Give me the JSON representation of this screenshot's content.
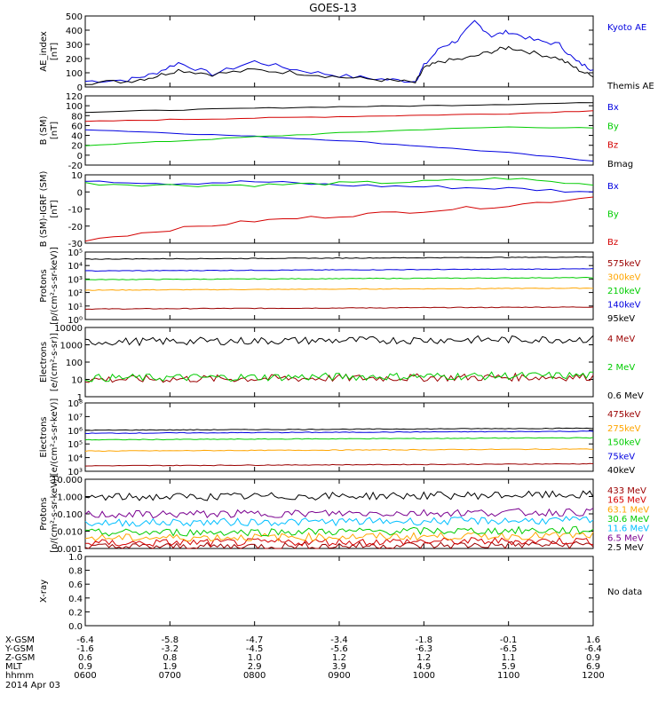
{
  "title": "GOES-13",
  "colors": {
    "black": "#000000",
    "red": "#d40000",
    "green": "#00cc00",
    "blue": "#0000e0",
    "orange": "#ffa500",
    "darkred": "#9b0000",
    "cyan": "#00bfff",
    "purple": "#7a0090",
    "yellowgreen": "#b8d000"
  },
  "bottom_axis": {
    "rows": [
      {
        "label": "X-GSM",
        "values": [
          "-6.4",
          "-5.8",
          "-4.7",
          "-3.4",
          "-1.8",
          "-0.1",
          "1.6"
        ]
      },
      {
        "label": "Y-GSM",
        "values": [
          "-1.6",
          "-3.2",
          "-4.5",
          "-5.6",
          "-6.3",
          "-6.5",
          "-6.4"
        ]
      },
      {
        "label": "Z-GSM",
        "values": [
          "0.6",
          "0.8",
          "1.0",
          "1.2",
          "1.2",
          "1.1",
          "0.9"
        ]
      },
      {
        "label": "MLT",
        "values": [
          "0.9",
          "1.9",
          "2.9",
          "3.9",
          "4.9",
          "5.9",
          "6.9"
        ]
      },
      {
        "label": "hhmm",
        "values": [
          "0600",
          "0700",
          "0800",
          "0900",
          "1000",
          "1100",
          "1200"
        ]
      }
    ],
    "date": "2014 Apr 03"
  },
  "chart_data": [
    {
      "type": "line",
      "ylabel": "AE_index [nT]",
      "ylim": [
        0,
        500
      ],
      "x": "06:00-12:00 UT",
      "ticks": [
        "0",
        "100",
        "200",
        "300",
        "400",
        "500"
      ],
      "series": [
        {
          "name": "Kyoto AE",
          "color": "blue",
          "points": [
            [
              6.0,
              40
            ],
            [
              6.5,
              50
            ],
            [
              6.8,
              90
            ],
            [
              7.1,
              170
            ],
            [
              7.5,
              90
            ],
            [
              8.0,
              180
            ],
            [
              8.5,
              120
            ],
            [
              9.0,
              80
            ],
            [
              9.5,
              55
            ],
            [
              9.9,
              40
            ],
            [
              10.0,
              150
            ],
            [
              10.2,
              280
            ],
            [
              10.4,
              330
            ],
            [
              10.6,
              460
            ],
            [
              10.8,
              360
            ],
            [
              11.0,
              390
            ],
            [
              11.3,
              330
            ],
            [
              11.6,
              300
            ],
            [
              11.8,
              180
            ],
            [
              12.0,
              120
            ]
          ]
        },
        {
          "name": "Themis AE",
          "color": "black",
          "points": [
            [
              6.0,
              30
            ],
            [
              6.5,
              40
            ],
            [
              6.8,
              70
            ],
            [
              7.1,
              120
            ],
            [
              7.5,
              90
            ],
            [
              8.0,
              120
            ],
            [
              8.5,
              100
            ],
            [
              9.0,
              70
            ],
            [
              9.5,
              50
            ],
            [
              9.9,
              30
            ],
            [
              10.0,
              130
            ],
            [
              10.2,
              180
            ],
            [
              10.5,
              200
            ],
            [
              10.8,
              250
            ],
            [
              11.0,
              280
            ],
            [
              11.3,
              240
            ],
            [
              11.6,
              200
            ],
            [
              11.8,
              130
            ],
            [
              12.0,
              70
            ]
          ]
        }
      ]
    },
    {
      "type": "line",
      "ylabel": "B (SM) [nT]",
      "ylim": [
        -20,
        120
      ],
      "ticks": [
        "-20",
        "0",
        "20",
        "40",
        "60",
        "80",
        "100",
        "120"
      ],
      "series": [
        {
          "name": "Bx",
          "color": "blue",
          "points": [
            [
              6,
              52
            ],
            [
              7,
              45
            ],
            [
              8,
              38
            ],
            [
              9,
              30
            ],
            [
              10,
              18
            ],
            [
              11,
              5
            ],
            [
              12,
              -12
            ]
          ]
        },
        {
          "name": "By",
          "color": "green",
          "points": [
            [
              6,
              20
            ],
            [
              7,
              28
            ],
            [
              8,
              37
            ],
            [
              9,
              45
            ],
            [
              10,
              52
            ],
            [
              11,
              57
            ],
            [
              12,
              55
            ]
          ]
        },
        {
          "name": "Bz",
          "color": "red",
          "points": [
            [
              6,
              68
            ],
            [
              7,
              72
            ],
            [
              8,
              75
            ],
            [
              9,
              78
            ],
            [
              10,
              81
            ],
            [
              11,
              84
            ],
            [
              12,
              90
            ]
          ]
        },
        {
          "name": "Bmag",
          "color": "black",
          "points": [
            [
              6,
              87
            ],
            [
              7,
              91
            ],
            [
              8,
              95
            ],
            [
              9,
              98
            ],
            [
              10,
              100
            ],
            [
              11,
              103
            ],
            [
              12,
              106
            ]
          ]
        }
      ]
    },
    {
      "type": "line",
      "ylabel": "B (SM)-IGRF (SM) [nT]",
      "ylim": [
        -30,
        10
      ],
      "ticks": [
        "-30",
        "-20",
        "-10",
        "0",
        "10"
      ],
      "series": [
        {
          "name": "Bx",
          "color": "blue",
          "points": [
            [
              6,
              7
            ],
            [
              7,
              5
            ],
            [
              8,
              6
            ],
            [
              9,
              4
            ],
            [
              10,
              3
            ],
            [
              11,
              2
            ],
            [
              12,
              0
            ]
          ]
        },
        {
          "name": "By",
          "color": "green",
          "points": [
            [
              6,
              5
            ],
            [
              7,
              4
            ],
            [
              8,
              4
            ],
            [
              9,
              5
            ],
            [
              10,
              6
            ],
            [
              11,
              8
            ],
            [
              12,
              4
            ]
          ]
        },
        {
          "name": "Bz",
          "color": "red",
          "points": [
            [
              6,
              -28
            ],
            [
              7,
              -22
            ],
            [
              8,
              -17
            ],
            [
              9,
              -14
            ],
            [
              10,
              -11
            ],
            [
              11,
              -8
            ],
            [
              12,
              -3
            ]
          ]
        }
      ]
    },
    {
      "type": "line",
      "ylabel": "Protons [p/(cm²-s-sr-keV)]",
      "ylim": [
        1,
        100000
      ],
      "scale": "log",
      "ticks": [
        "10⁰",
        "10¹",
        "10²",
        "10³",
        "10⁴",
        "10⁵"
      ],
      "series": [
        {
          "name": "575keV",
          "color": "darkred",
          "value": 6
        },
        {
          "name": "300keV",
          "color": "orange",
          "value": 150
        },
        {
          "name": "210keV",
          "color": "green",
          "value": 900
        },
        {
          "name": "140keV",
          "color": "blue",
          "value": 4000
        },
        {
          "name": "95keV",
          "color": "black",
          "value": 30000
        }
      ]
    },
    {
      "type": "line",
      "ylabel": "Electrons [e/(cm²-s-sr)]",
      "ylim": [
        1,
        10000
      ],
      "scale": "log",
      "ticks": [
        "1",
        "10",
        "100",
        "1000",
        "10000"
      ],
      "series": [
        {
          "name": "4 MeV",
          "color": "darkred",
          "value": 10
        },
        {
          "name": "2 MeV",
          "color": "green",
          "value": 12
        },
        {
          "name": "0.6 MeV",
          "color": "black",
          "value": 1500
        }
      ]
    },
    {
      "type": "line",
      "ylabel": "Electrons [e/(cm²-s-sr-keV)]",
      "ylim": [
        1000,
        100000000
      ],
      "scale": "log",
      "ticks": [
        "10³",
        "10⁴",
        "10⁵",
        "10⁶",
        "10⁷",
        "10⁸"
      ],
      "series": [
        {
          "name": "475keV",
          "color": "darkred",
          "value": 2500
        },
        {
          "name": "275keV",
          "color": "orange",
          "value": 30000
        },
        {
          "name": "150keV",
          "color": "green",
          "value": 200000
        },
        {
          "name": "75keV",
          "color": "blue",
          "value": 600000
        },
        {
          "name": "40keV",
          "color": "black",
          "value": 1000000
        }
      ]
    },
    {
      "type": "line",
      "ylabel": "Protons [p/(cm²-s-sr-keV)]",
      "ylim": [
        0.001,
        10
      ],
      "scale": "log",
      "ticks": [
        "0.001",
        "0.010",
        "0.100",
        "1.000",
        "10.000"
      ],
      "series": [
        {
          "name": "433 MeV",
          "color": "darkred",
          "value": 0.0012
        },
        {
          "name": "165 MeV",
          "color": "red",
          "value": 0.002
        },
        {
          "name": "63.1 MeV",
          "color": "orange",
          "value": 0.004
        },
        {
          "name": "30.6 MeV",
          "color": "green",
          "value": 0.008
        },
        {
          "name": "11.6 MeV",
          "color": "cyan",
          "value": 0.03
        },
        {
          "name": "6.5 MeV",
          "color": "purple",
          "value": 0.09
        },
        {
          "name": "2.5 MeV",
          "color": "black",
          "value": 0.9
        }
      ]
    },
    {
      "type": "line",
      "ylabel": "X-ray",
      "ylim": [
        0,
        1
      ],
      "ticks": [
        "0.0",
        "0.2",
        "0.4",
        "0.6",
        "0.8",
        "1.0"
      ],
      "series": [],
      "note": "No data"
    }
  ]
}
